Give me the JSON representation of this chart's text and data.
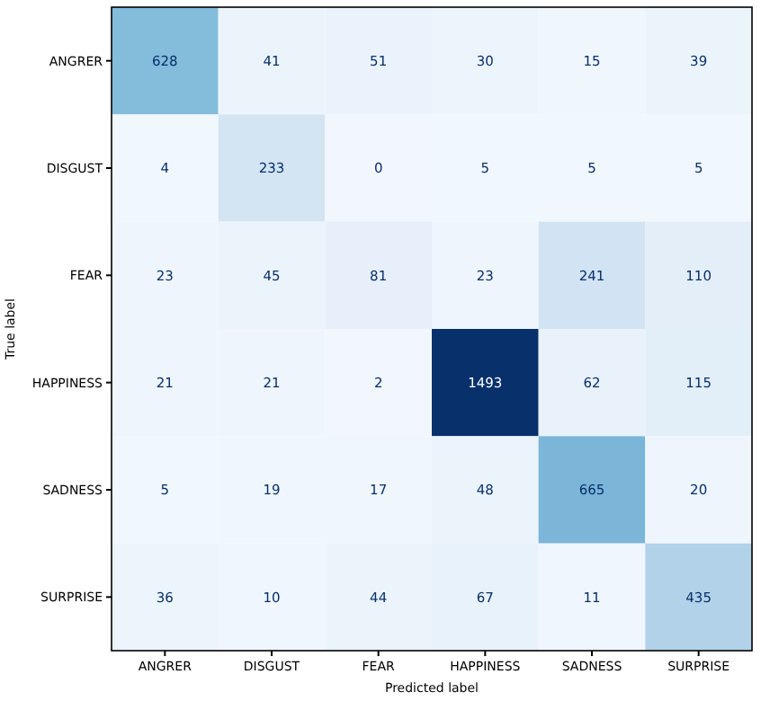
{
  "chart_data": {
    "type": "heatmap",
    "data_labels": true,
    "xlabel": "Predicted label",
    "ylabel": "True label",
    "categories": [
      "ANGRER",
      "DISGUST",
      "FEAR",
      "HAPPINESS",
      "SADNESS",
      "SURPRISE"
    ],
    "y_categories": [
      "ANGRER",
      "DISGUST",
      "FEAR",
      "HAPPINESS",
      "SADNESS",
      "SURPRISE"
    ],
    "cells": [
      [
        628,
        41,
        51,
        30,
        15,
        39
      ],
      [
        4,
        233,
        0,
        5,
        5,
        5
      ],
      [
        23,
        45,
        81,
        23,
        241,
        110
      ],
      [
        21,
        21,
        2,
        1493,
        62,
        115
      ],
      [
        5,
        19,
        17,
        48,
        665,
        20
      ],
      [
        36,
        10,
        44,
        67,
        11,
        435
      ]
    ]
  }
}
